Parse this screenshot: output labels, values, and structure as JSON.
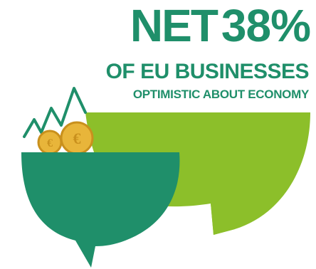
{
  "headline": {
    "prefix": "NET",
    "value": "38%"
  },
  "subline": "OF EU BUSINESSES",
  "caption": "OPTIMISTIC ABOUT ECONOMY",
  "colors": {
    "dark_green": "#1f8f6a",
    "light_green": "#8cbf2a",
    "coin_gold": "#e8b53a",
    "coin_edge": "#c9901d"
  },
  "icons": [
    "speech-bubble-icon",
    "coin-icon",
    "trend-line-icon"
  ]
}
